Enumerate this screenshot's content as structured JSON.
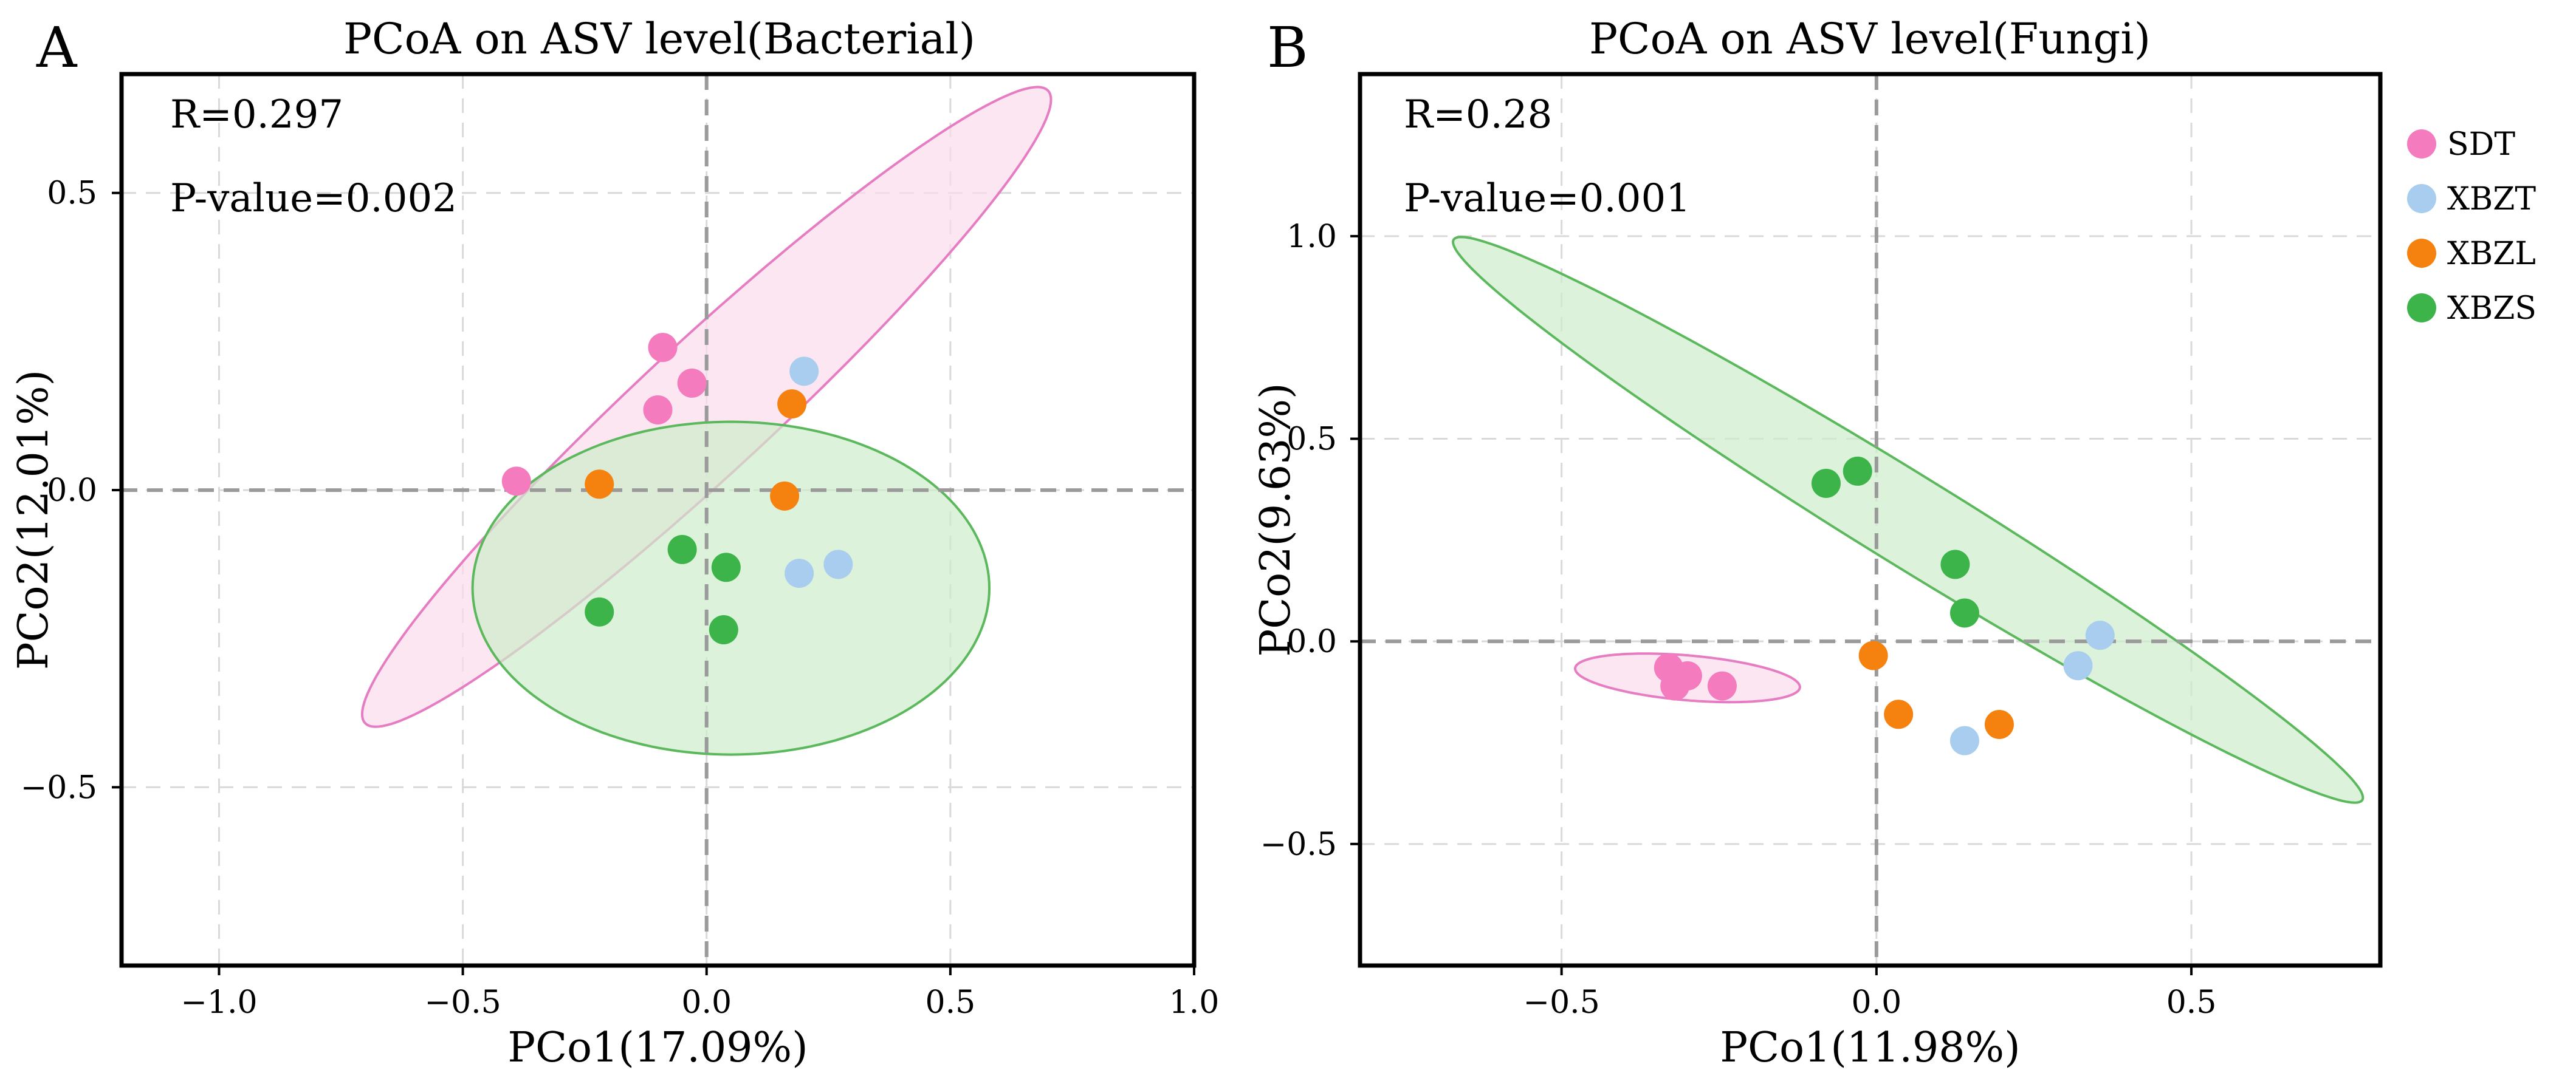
{
  "chart_data": [
    {
      "type": "scatter",
      "panel_label": "A",
      "title": "PCoA on ASV level(Bacterial)",
      "xlabel": "PCo1(17.09%)",
      "ylabel": "PCo2(12.01%)",
      "xlim": [
        -1.2,
        1.0
      ],
      "ylim": [
        -0.8,
        0.7
      ],
      "xticks": [
        -1.0,
        -0.5,
        0.0,
        0.5,
        1.0
      ],
      "xtick_labels": [
        "−1.0",
        "−0.5",
        "0.0",
        "0.5",
        "1.0"
      ],
      "yticks": [
        -0.5,
        0.0,
        0.5
      ],
      "ytick_labels": [
        "−0.5",
        "0.0",
        "0.5"
      ],
      "grid": true,
      "stats": [
        "R=0.297",
        "P-value=0.002"
      ],
      "series": [
        {
          "name": "SDT",
          "color": "#f47bbd",
          "points": [
            [
              -0.09,
              0.24
            ],
            [
              -0.03,
              0.18
            ],
            [
              -0.1,
              0.135
            ],
            [
              -0.39,
              0.015
            ]
          ]
        },
        {
          "name": "XBZT",
          "color": "#a9cdee",
          "points": [
            [
              0.2,
              0.2
            ],
            [
              0.19,
              -0.14
            ],
            [
              0.27,
              -0.125
            ]
          ]
        },
        {
          "name": "XBZL",
          "color": "#f5820f",
          "points": [
            [
              0.175,
              0.145
            ],
            [
              -0.22,
              0.01
            ],
            [
              0.16,
              -0.01
            ]
          ]
        },
        {
          "name": "XBZS",
          "color": "#3cb44a",
          "points": [
            [
              -0.05,
              -0.1
            ],
            [
              0.04,
              -0.13
            ],
            [
              -0.22,
              -0.205
            ],
            [
              0.035,
              -0.235
            ]
          ]
        }
      ],
      "ellipses": [
        {
          "group": "SDT",
          "color": "#e67cc1",
          "fill": "#fbdcec",
          "center": [
            0.0,
            0.14
          ],
          "semi_major": 0.88,
          "semi_minor": 0.12,
          "angle_deg": 37
        },
        {
          "group": "XBZS",
          "color": "#5cb85c",
          "fill": "#cdeccb",
          "center": [
            0.05,
            -0.165
          ],
          "semi_major": 0.53,
          "semi_minor": 0.28,
          "angle_deg": 0
        }
      ]
    },
    {
      "type": "scatter",
      "panel_label": "B",
      "title": "PCoA on ASV level(Fungi)",
      "xlabel": "PCo1(11.98%)",
      "ylabel": "PCo2(9.63%)",
      "xlim": [
        -0.82,
        0.8
      ],
      "ylim": [
        -0.8,
        1.4
      ],
      "xticks": [
        -0.5,
        0.0,
        0.5
      ],
      "xtick_labels": [
        "−0.5",
        "0.0",
        "0.5"
      ],
      "yticks": [
        -0.5,
        0.0,
        0.5,
        1.0
      ],
      "ytick_labels": [
        "−0.5",
        "0.0",
        "0.5",
        "1.0"
      ],
      "grid": true,
      "stats": [
        "R=0.28",
        "P-value=0.001"
      ],
      "legend": {
        "position": "right",
        "entries": [
          "SDT",
          "XBZT",
          "XBZL",
          "XBZS"
        ]
      },
      "series": [
        {
          "name": "SDT",
          "color": "#f47bbd",
          "points": [
            [
              -0.33,
              -0.065
            ],
            [
              -0.3,
              -0.085
            ],
            [
              -0.32,
              -0.11
            ],
            [
              -0.245,
              -0.11
            ]
          ]
        },
        {
          "name": "XBZT",
          "color": "#a9cdee",
          "points": [
            [
              0.355,
              0.015
            ],
            [
              0.32,
              -0.06
            ],
            [
              0.14,
              -0.245
            ]
          ]
        },
        {
          "name": "XBZL",
          "color": "#f5820f",
          "points": [
            [
              -0.005,
              -0.035
            ],
            [
              0.035,
              -0.18
            ],
            [
              0.195,
              -0.205
            ]
          ]
        },
        {
          "name": "XBZS",
          "color": "#3cb44a",
          "points": [
            [
              -0.03,
              0.42
            ],
            [
              -0.08,
              0.39
            ],
            [
              0.125,
              0.19
            ],
            [
              0.14,
              0.07
            ]
          ]
        }
      ],
      "ellipses": [
        {
          "group": "SDT",
          "color": "#e67cc1",
          "fill": "#fbdcec",
          "center": [
            -0.3,
            -0.09
          ],
          "semi_major": 0.18,
          "semi_minor": 0.055,
          "angle_deg": -8
        },
        {
          "group": "XBZS",
          "color": "#5cb85c",
          "fill": "#cdeccb",
          "center": [
            0.05,
            0.3
          ],
          "semi_major": 1.0,
          "semi_minor": 0.095,
          "angle_deg": -44
        }
      ]
    }
  ]
}
